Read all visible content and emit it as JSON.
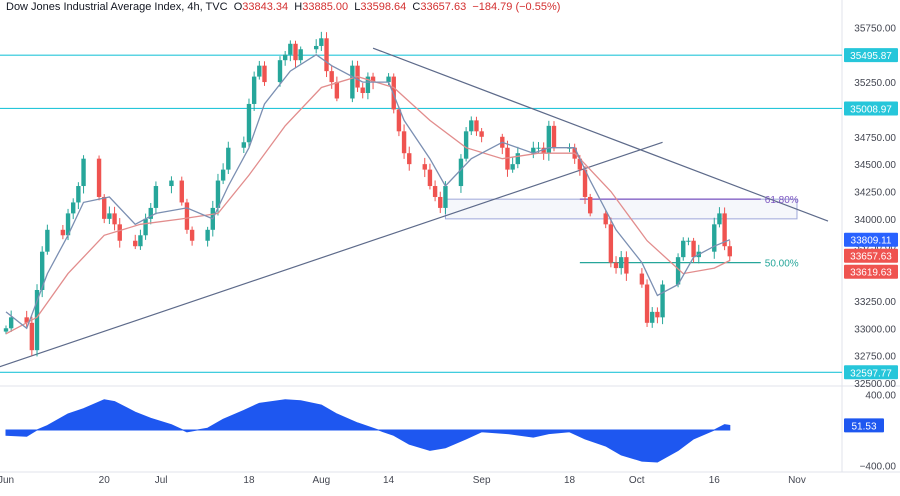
{
  "header": {
    "title": "Dow Jones Industrial Average Index, 4h, TVC",
    "open_label": "O",
    "open": "33843.34",
    "high_label": "H",
    "high": "33885.00",
    "low_label": "L",
    "low": "33598.64",
    "close_label": "C",
    "close": "33657.63",
    "change": "−184.79 (−0.55%)"
  },
  "colors": {
    "up": "#26a69a",
    "down": "#ef5350",
    "fast_ma": "#7b8fb2",
    "slow_ma": "#e28d8d",
    "horizontal_line": "#26c6da",
    "trendline": "#5d6a8a",
    "oscillator": "#1e57f0",
    "fib": "#7e57c2",
    "grid": "#ffffff"
  },
  "chart_data": [
    {
      "type": "candlestick",
      "title": "Dow Jones Industrial Average Index, 4h, TVC",
      "y_ticks": [
        "35750.00",
        "35500.00",
        "35250.00",
        "35000.00",
        "34750.00",
        "34500.00",
        "34250.00",
        "34000.00",
        "33750.00",
        "33500.00",
        "33250.00",
        "33000.00",
        "32750.00",
        "32500.00"
      ],
      "y_tick_values": [
        35750,
        35500,
        35250,
        35000,
        34750,
        34500,
        34250,
        34000,
        33750,
        33500,
        33250,
        33000,
        32750,
        32500
      ],
      "ylim": [
        32500,
        36000
      ],
      "x_tick_labels": [
        "Jun",
        "20",
        "Jul",
        "18",
        "Aug",
        "14",
        "Sep",
        "18",
        "Oct",
        "16",
        "Nov"
      ],
      "x_tick_dates": [
        "2023-06-01",
        "2023-06-20",
        "2023-07-01",
        "2023-07-18",
        "2023-08-01",
        "2023-08-14",
        "2023-09-01",
        "2023-09-18",
        "2023-10-01",
        "2023-10-16",
        "2023-11-01"
      ],
      "xlim": [
        "2023-06-01",
        "2023-11-07"
      ],
      "close_path": [
        [
          "2023-06-01",
          33000
        ],
        [
          "2023-06-02",
          33100
        ],
        [
          "2023-06-05",
          33050
        ],
        [
          "2023-06-06",
          32800
        ],
        [
          "2023-06-07",
          33350
        ],
        [
          "2023-06-08",
          33700
        ],
        [
          "2023-06-09",
          33900
        ],
        [
          "2023-06-12",
          33850
        ],
        [
          "2023-06-13",
          34050
        ],
        [
          "2023-06-14",
          34150
        ],
        [
          "2023-06-15",
          34300
        ],
        [
          "2023-06-16",
          34550
        ],
        [
          "2023-06-19",
          34200
        ],
        [
          "2023-06-20",
          34000
        ],
        [
          "2023-06-21",
          34050
        ],
        [
          "2023-06-22",
          33950
        ],
        [
          "2023-06-23",
          33800
        ],
        [
          "2023-06-26",
          33750
        ],
        [
          "2023-06-27",
          33850
        ],
        [
          "2023-06-28",
          34000
        ],
        [
          "2023-06-29",
          34100
        ],
        [
          "2023-06-30",
          34300
        ],
        [
          "2023-07-03",
          34350
        ],
        [
          "2023-07-05",
          34150
        ],
        [
          "2023-07-06",
          33900
        ],
        [
          "2023-07-07",
          33800
        ],
        [
          "2023-07-10",
          33900
        ],
        [
          "2023-07-11",
          34100
        ],
        [
          "2023-07-12",
          34350
        ],
        [
          "2023-07-13",
          34450
        ],
        [
          "2023-07-14",
          34650
        ],
        [
          "2023-07-17",
          34700
        ],
        [
          "2023-07-18",
          35050
        ],
        [
          "2023-07-19",
          35300
        ],
        [
          "2023-07-20",
          35400
        ],
        [
          "2023-07-21",
          35250
        ],
        [
          "2023-07-24",
          35450
        ],
        [
          "2023-07-25",
          35500
        ],
        [
          "2023-07-26",
          35600
        ],
        [
          "2023-07-27",
          35450
        ],
        [
          "2023-07-28",
          35550
        ],
        [
          "2023-07-31",
          35580
        ],
        [
          "2023-08-01",
          35650
        ],
        [
          "2023-08-02",
          35350
        ],
        [
          "2023-08-03",
          35250
        ],
        [
          "2023-08-04",
          35100
        ],
        [
          "2023-08-07",
          35400
        ],
        [
          "2023-08-08",
          35200
        ],
        [
          "2023-08-09",
          35150
        ],
        [
          "2023-08-10",
          35300
        ],
        [
          "2023-08-11",
          35250
        ],
        [
          "2023-08-14",
          35300
        ],
        [
          "2023-08-15",
          35000
        ],
        [
          "2023-08-16",
          34800
        ],
        [
          "2023-08-17",
          34600
        ],
        [
          "2023-08-18",
          34500
        ],
        [
          "2023-08-21",
          34450
        ],
        [
          "2023-08-22",
          34300
        ],
        [
          "2023-08-23",
          34200
        ],
        [
          "2023-08-24",
          34100
        ],
        [
          "2023-08-25",
          34300
        ],
        [
          "2023-08-28",
          34550
        ],
        [
          "2023-08-29",
          34800
        ],
        [
          "2023-08-30",
          34900
        ],
        [
          "2023-08-31",
          34800
        ],
        [
          "2023-09-01",
          34750
        ],
        [
          "2023-09-05",
          34650
        ],
        [
          "2023-09-06",
          34450
        ],
        [
          "2023-09-07",
          34500
        ],
        [
          "2023-09-08",
          34600
        ],
        [
          "2023-09-11",
          34650
        ],
        [
          "2023-09-12",
          34650
        ],
        [
          "2023-09-13",
          34600
        ],
        [
          "2023-09-14",
          34850
        ],
        [
          "2023-09-15",
          34650
        ],
        [
          "2023-09-18",
          34650
        ],
        [
          "2023-09-19",
          34550
        ],
        [
          "2023-09-20",
          34450
        ],
        [
          "2023-09-21",
          34200
        ],
        [
          "2023-09-22",
          34050
        ],
        [
          "2023-09-25",
          33950
        ],
        [
          "2023-09-26",
          33600
        ],
        [
          "2023-09-27",
          33550
        ],
        [
          "2023-09-28",
          33650
        ],
        [
          "2023-09-29",
          33500
        ],
        [
          "2023-10-02",
          33400
        ],
        [
          "2023-10-03",
          33050
        ],
        [
          "2023-10-04",
          33150
        ],
        [
          "2023-10-05",
          33100
        ],
        [
          "2023-10-06",
          33400
        ],
        [
          "2023-10-09",
          33650
        ],
        [
          "2023-10-10",
          33800
        ],
        [
          "2023-10-11",
          33800
        ],
        [
          "2023-10-12",
          33650
        ],
        [
          "2023-10-13",
          33700
        ],
        [
          "2023-10-16",
          33950
        ],
        [
          "2023-10-17",
          34050
        ],
        [
          "2023-10-18",
          33750
        ],
        [
          "2023-10-19",
          33657.63
        ]
      ],
      "fast_ma": [
        [
          "2023-06-01",
          33150
        ],
        [
          "2023-06-05",
          33000
        ],
        [
          "2023-06-09",
          33500
        ],
        [
          "2023-06-13",
          33850
        ],
        [
          "2023-06-16",
          34150
        ],
        [
          "2023-06-21",
          34200
        ],
        [
          "2023-06-26",
          33950
        ],
        [
          "2023-06-30",
          34050
        ],
        [
          "2023-07-06",
          34100
        ],
        [
          "2023-07-11",
          34000
        ],
        [
          "2023-07-14",
          34300
        ],
        [
          "2023-07-18",
          34650
        ],
        [
          "2023-07-21",
          35050
        ],
        [
          "2023-07-26",
          35350
        ],
        [
          "2023-07-31",
          35500
        ],
        [
          "2023-08-03",
          35400
        ],
        [
          "2023-08-09",
          35250
        ],
        [
          "2023-08-14",
          35250
        ],
        [
          "2023-08-17",
          34900
        ],
        [
          "2023-08-22",
          34550
        ],
        [
          "2023-08-25",
          34300
        ],
        [
          "2023-08-30",
          34550
        ],
        [
          "2023-09-05",
          34700
        ],
        [
          "2023-09-11",
          34600
        ],
        [
          "2023-09-14",
          34650
        ],
        [
          "2023-09-19",
          34650
        ],
        [
          "2023-09-22",
          34350
        ],
        [
          "2023-09-27",
          33900
        ],
        [
          "2023-10-02",
          33600
        ],
        [
          "2023-10-05",
          33300
        ],
        [
          "2023-10-09",
          33400
        ],
        [
          "2023-10-12",
          33650
        ],
        [
          "2023-10-16",
          33750
        ],
        [
          "2023-10-19",
          33809.11
        ]
      ],
      "slow_ma": [
        [
          "2023-06-01",
          32950
        ],
        [
          "2023-06-07",
          33100
        ],
        [
          "2023-06-13",
          33500
        ],
        [
          "2023-06-20",
          33850
        ],
        [
          "2023-06-27",
          33950
        ],
        [
          "2023-07-05",
          34000
        ],
        [
          "2023-07-12",
          34050
        ],
        [
          "2023-07-18",
          34400
        ],
        [
          "2023-07-25",
          34850
        ],
        [
          "2023-08-01",
          35200
        ],
        [
          "2023-08-08",
          35300
        ],
        [
          "2023-08-15",
          35200
        ],
        [
          "2023-08-22",
          34900
        ],
        [
          "2023-08-29",
          34650
        ],
        [
          "2023-09-05",
          34550
        ],
        [
          "2023-09-12",
          34600
        ],
        [
          "2023-09-19",
          34600
        ],
        [
          "2023-09-26",
          34250
        ],
        [
          "2023-10-03",
          33800
        ],
        [
          "2023-10-10",
          33500
        ],
        [
          "2023-10-16",
          33550
        ],
        [
          "2023-10-19",
          33619.63
        ]
      ],
      "price_labels": [
        "35495.87",
        "35008.97",
        "33809.11",
        "33657.63",
        "33619.63",
        "32597.77"
      ],
      "horizontal_lines": [
        35495.87,
        35008.97,
        32597.77
      ],
      "fib_levels": [
        {
          "label": "61.80%",
          "value": 34180
        },
        {
          "label": "50.00%",
          "value": 33600
        }
      ],
      "zone": {
        "from_date": "2023-08-25",
        "to_date": "2023-11-01",
        "low": 34000,
        "high": 34180
      },
      "trendlines": [
        {
          "from": [
            "2023-05-29",
            32620
          ],
          "to": [
            "2023-10-06",
            34700
          ]
        },
        {
          "from": [
            "2023-08-11",
            35560
          ],
          "to": [
            "2023-11-07",
            33980
          ]
        }
      ]
    },
    {
      "type": "area",
      "y_ticks": [
        "400.00",
        "−400.00"
      ],
      "y_tick_values": [
        400,
        -400
      ],
      "ylim": [
        -450,
        450
      ],
      "last_value_label": "51.53",
      "values": [
        [
          "2023-06-01",
          -60
        ],
        [
          "2023-06-05",
          -70
        ],
        [
          "2023-06-07",
          0
        ],
        [
          "2023-06-09",
          50
        ],
        [
          "2023-06-13",
          180
        ],
        [
          "2023-06-16",
          240
        ],
        [
          "2023-06-20",
          340
        ],
        [
          "2023-06-22",
          320
        ],
        [
          "2023-06-26",
          200
        ],
        [
          "2023-06-29",
          130
        ],
        [
          "2023-07-03",
          60
        ],
        [
          "2023-07-06",
          -20
        ],
        [
          "2023-07-10",
          20
        ],
        [
          "2023-07-13",
          120
        ],
        [
          "2023-07-17",
          220
        ],
        [
          "2023-07-20",
          300
        ],
        [
          "2023-07-25",
          340
        ],
        [
          "2023-07-28",
          330
        ],
        [
          "2023-08-01",
          280
        ],
        [
          "2023-08-04",
          180
        ],
        [
          "2023-08-08",
          80
        ],
        [
          "2023-08-11",
          20
        ],
        [
          "2023-08-15",
          -60
        ],
        [
          "2023-08-18",
          -160
        ],
        [
          "2023-08-22",
          -230
        ],
        [
          "2023-08-25",
          -200
        ],
        [
          "2023-08-29",
          -100
        ],
        [
          "2023-09-01",
          -20
        ],
        [
          "2023-09-06",
          -40
        ],
        [
          "2023-09-11",
          -80
        ],
        [
          "2023-09-14",
          -40
        ],
        [
          "2023-09-18",
          -20
        ],
        [
          "2023-09-21",
          -100
        ],
        [
          "2023-09-25",
          -180
        ],
        [
          "2023-09-28",
          -280
        ],
        [
          "2023-10-02",
          -350
        ],
        [
          "2023-10-05",
          -360
        ],
        [
          "2023-10-09",
          -230
        ],
        [
          "2023-10-12",
          -100
        ],
        [
          "2023-10-16",
          0
        ],
        [
          "2023-10-18",
          60
        ],
        [
          "2023-10-19",
          51.53
        ]
      ]
    }
  ]
}
